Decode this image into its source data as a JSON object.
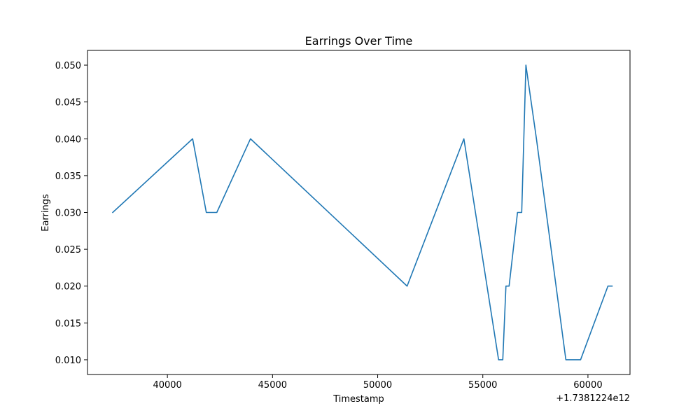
{
  "chart_data": {
    "type": "line",
    "title": "Earrings Over Time",
    "xlabel": "Timestamp",
    "ylabel": "Earrings",
    "x_offset_label": "+1.7381224e12",
    "x_offset": 1738122400000,
    "x_ticks": [
      40000,
      45000,
      50000,
      55000,
      60000
    ],
    "y_ticks": [
      0.01,
      0.015,
      0.02,
      0.025,
      0.03,
      0.035,
      0.04,
      0.045,
      0.05
    ],
    "xlim": [
      36200,
      62000
    ],
    "ylim": [
      0.008,
      0.052
    ],
    "grid": false,
    "series": [
      {
        "color": "#1f77b4",
        "x": [
          37400,
          41200,
          41850,
          42350,
          43950,
          51400,
          54100,
          55750,
          55950,
          56100,
          56250,
          56650,
          56850,
          57050,
          57550,
          58950,
          59650,
          60950,
          61150
        ],
        "y": [
          0.03,
          0.04,
          0.03,
          0.03,
          0.04,
          0.02,
          0.04,
          0.01,
          0.01,
          0.02,
          0.02,
          0.03,
          0.03,
          0.05,
          0.04,
          0.01,
          0.01,
          0.02,
          0.02
        ]
      }
    ]
  }
}
